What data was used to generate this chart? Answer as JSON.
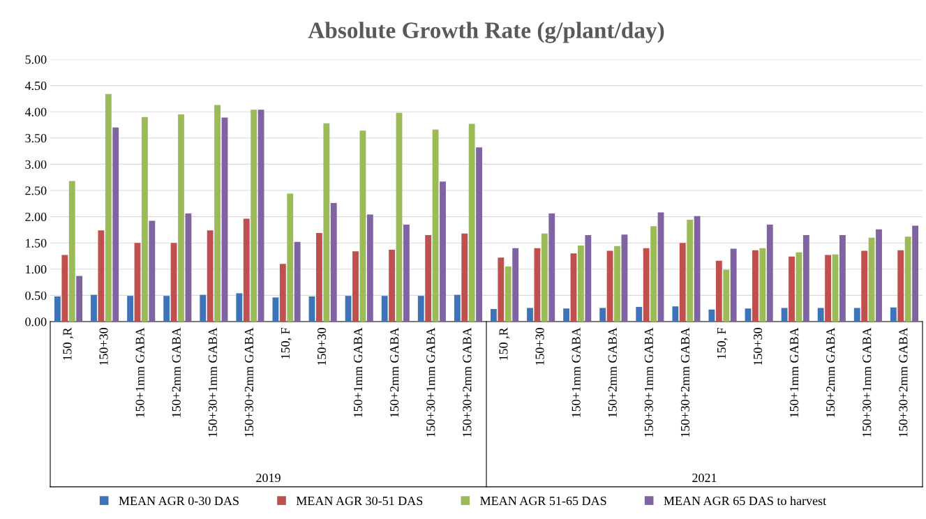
{
  "chart_data": {
    "type": "bar",
    "title": "Absolute Growth Rate (g/plant/day)",
    "categories": [
      "150 ,R",
      "150+30",
      "150+1mm GABA",
      "150+2mm GABA",
      "150+30+1mm GABA",
      "150+30+2mm GABA",
      "150, F",
      "150+30",
      "150+1mm GABA",
      "150+2mm GABA",
      "150+30+1mm GABA",
      "150+30+2mm GABA",
      "150 ,R",
      "150+30",
      "150+1mm GABA",
      "150+2mm GABA",
      "150+30+1mm GABA",
      "150+30+2mm GABA",
      "150, F",
      "150+30",
      "150+1mm GABA",
      "150+2mm GABA",
      "150+30+1mm GABA",
      "150+30+2mm GABA"
    ],
    "series": [
      {
        "name": "MEAN AGR 0-30 DAS",
        "color": "#3f73b8",
        "values": [
          0.48,
          0.51,
          0.49,
          0.49,
          0.51,
          0.54,
          0.46,
          0.48,
          0.49,
          0.49,
          0.49,
          0.51,
          0.24,
          0.26,
          0.25,
          0.26,
          0.28,
          0.29,
          0.23,
          0.25,
          0.26,
          0.26,
          0.26,
          0.27
        ]
      },
      {
        "name": "MEAN AGR 30-51 DAS",
        "color": "#c0504d",
        "values": [
          1.27,
          1.74,
          1.5,
          1.5,
          1.74,
          1.96,
          1.1,
          1.69,
          1.34,
          1.37,
          1.65,
          1.68,
          1.22,
          1.4,
          1.3,
          1.35,
          1.4,
          1.5,
          1.16,
          1.36,
          1.24,
          1.27,
          1.35,
          1.36
        ]
      },
      {
        "name": "MEAN AGR 51-65 DAS",
        "color": "#9bbb59",
        "values": [
          2.68,
          4.34,
          3.9,
          3.95,
          4.13,
          4.04,
          2.44,
          3.78,
          3.64,
          3.98,
          3.66,
          3.77,
          1.05,
          1.68,
          1.45,
          1.44,
          1.82,
          1.94,
          0.99,
          1.4,
          1.32,
          1.28,
          1.6,
          1.62
        ]
      },
      {
        "name": "MEAN AGR 65 DAS to harvest",
        "color": "#8064a2",
        "values": [
          0.87,
          3.7,
          1.92,
          2.06,
          3.89,
          4.04,
          1.52,
          2.26,
          2.04,
          1.85,
          2.67,
          3.32,
          1.4,
          2.06,
          1.65,
          1.66,
          2.08,
          2.01,
          1.39,
          1.85,
          1.65,
          1.65,
          1.76,
          1.83
        ]
      }
    ],
    "ylim": [
      0,
      5
    ],
    "yticks": [
      {
        "value": 0,
        "label": "0.00"
      },
      {
        "value": 0.5,
        "label": "0.50"
      },
      {
        "value": 1,
        "label": "1.00"
      },
      {
        "value": 1.5,
        "label": "1.50"
      },
      {
        "value": 2,
        "label": "2.00"
      },
      {
        "value": 2.5,
        "label": "2.50"
      },
      {
        "value": 3,
        "label": "3.00"
      },
      {
        "value": 3.5,
        "label": "3.50"
      },
      {
        "value": 4,
        "label": "4.00"
      },
      {
        "value": 4.5,
        "label": "4.50"
      },
      {
        "value": 5,
        "label": "5.00"
      }
    ],
    "grid": "y",
    "legend": "bottom",
    "annotations": [
      "2019",
      "2021"
    ]
  }
}
